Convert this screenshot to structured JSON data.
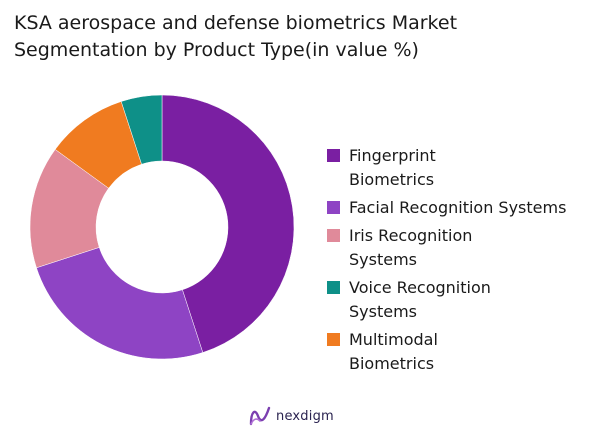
{
  "chart_data": {
    "type": "pie",
    "title": "KSA aerospace and defense biometrics Market Segmentation by Product Type(in value %)",
    "title_lines": [
      "KSA aerospace and defense biometrics Market",
      "Segmentation by Product Type(in value %)"
    ],
    "donut": true,
    "legend_position": "right",
    "categories": [
      "Fingerprint Biometrics",
      "Facial Recognition Systems",
      "Iris Recognition Systems",
      "Voice Recognition Systems",
      "Multimodal Biometrics"
    ],
    "values": [
      45,
      25,
      15,
      5,
      10
    ],
    "slice_order": [
      0,
      1,
      2,
      4,
      3
    ],
    "colors": [
      "#7a1fa2",
      "#8e44c4",
      "#e08a9a",
      "#0e9088",
      "#f07b20"
    ]
  },
  "legend": {
    "items": [
      {
        "label": "Fingerprint Biometrics",
        "color": "#7a1fa2"
      },
      {
        "label": "Facial Recognition Systems",
        "color": "#8e44c4"
      },
      {
        "label": "Iris Recognition Systems",
        "color": "#e08a9a"
      },
      {
        "label": "Voice Recognition Systems",
        "color": "#0e9088"
      },
      {
        "label": "Multimodal Biometrics",
        "color": "#f07b20"
      }
    ]
  },
  "brand": {
    "name": "nexdigm",
    "icon": "nexdigm-logo-icon"
  }
}
